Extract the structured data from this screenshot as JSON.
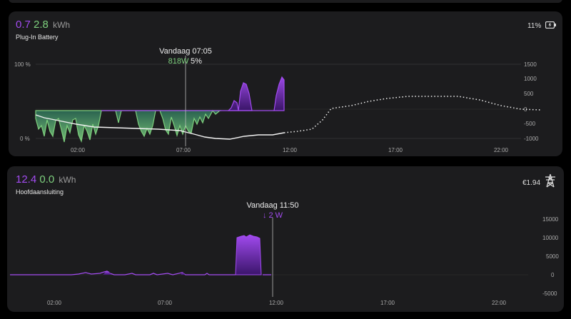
{
  "battery": {
    "value_purple": "0.7",
    "value_green": "2.8",
    "unit": "kWh",
    "title": "Plug-In Battery",
    "soc": "11%",
    "tooltip_time": "Vandaag 07:05",
    "tooltip_power": "818W",
    "tooltip_soc": "5%",
    "left_axis": [
      "100 %",
      "0 %"
    ],
    "right_axis": [
      "1500",
      "1000",
      "500",
      "0",
      "-500",
      "-1000"
    ],
    "x_ticks": [
      "02:00",
      "07:00",
      "12:00",
      "17:00",
      "22:00"
    ]
  },
  "grid": {
    "value_purple": "12.4",
    "value_green": "0.0",
    "unit": "kWh",
    "title": "Hoofdaansluiting",
    "cost": "€1.94",
    "tooltip_time": "Vandaag 11:50",
    "tooltip_power": "↓ 2 W",
    "right_axis": [
      "15000",
      "10000",
      "5000",
      "0",
      "-5000"
    ],
    "x_ticks": [
      "02:00",
      "07:00",
      "12:00",
      "17:00",
      "22:00"
    ]
  },
  "colors": {
    "purple": "#a24bf0",
    "green": "#7ed07e",
    "card": "#1c1c1e"
  },
  "icons": {
    "battery": "battery-charging-icon",
    "grid": "power-pylon-icon"
  }
}
